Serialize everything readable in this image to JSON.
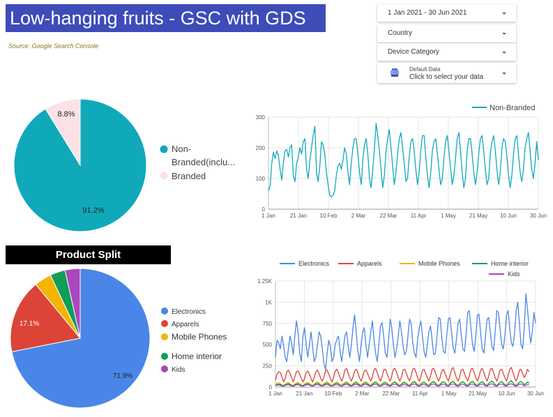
{
  "header": {
    "title": "Low-hanging fruits - GSC with GDS",
    "source": "Source: Google Search Console"
  },
  "controls": {
    "date_range": "1 Jan 2021 - 30 Jun 2021",
    "country": "Country",
    "device_category": "Device Category",
    "data_source_title": "Default Data",
    "data_source_subtitle": "Click to select your data"
  },
  "product_split_title": "Product Split",
  "colors": {
    "banner": "#3d4cb8",
    "non_branded": "#10a9ba",
    "branded": "#fbe2e6",
    "electronics": "#4a86e8",
    "apparels": "#db4437",
    "mobile_phones": "#f4b400",
    "home_interior": "#0f9d58",
    "kids": "#ab47bc"
  },
  "chart_data": [
    {
      "type": "pie",
      "labels": [
        "Non-Branded(inclu...",
        "Branded"
      ],
      "values": [
        91.2,
        8.8
      ],
      "data_labels": [
        "91.2%",
        "8.8%"
      ],
      "legend": "right"
    },
    {
      "type": "line",
      "series_names": [
        "Non-Branded"
      ],
      "x_ticks": [
        "1 Jan",
        "21 Jan",
        "10 Feb",
        "2 Mar",
        "22 Mar",
        "11 Apr",
        "1 May",
        "21 May",
        "10 Jun",
        "30 Jun"
      ],
      "y_ticks": [
        "0",
        "100",
        "200",
        "300"
      ],
      "ylim": [
        0,
        300
      ],
      "legend": "top-right",
      "grid": true,
      "series": [
        {
          "name": "Non-Branded",
          "values": [
            60,
            75,
            150,
            185,
            165,
            190,
            175,
            130,
            95,
            150,
            190,
            195,
            170,
            200,
            210,
            110,
            90,
            150,
            170,
            200,
            180,
            220,
            230,
            130,
            100,
            160,
            200,
            240,
            270,
            120,
            90,
            140,
            220,
            210,
            180,
            120,
            80,
            45,
            40,
            45,
            60,
            110,
            140,
            150,
            130,
            160,
            200,
            180,
            120,
            80,
            150,
            200,
            230,
            230,
            180,
            120,
            80,
            160,
            210,
            230,
            180,
            100,
            70,
            130,
            200,
            280,
            240,
            190,
            130,
            70,
            110,
            190,
            230,
            260,
            200,
            140,
            80,
            120,
            180,
            230,
            250,
            200,
            150,
            90,
            100,
            170,
            220,
            230,
            190,
            130,
            80,
            120,
            190,
            240,
            240,
            170,
            110,
            70,
            120,
            190,
            220,
            230,
            180,
            130,
            80,
            100,
            170,
            220,
            240,
            190,
            130,
            80,
            110,
            170,
            230,
            250,
            190,
            120,
            70,
            100,
            190,
            230,
            230,
            180,
            120,
            80,
            120,
            180,
            230,
            240,
            190,
            130,
            80,
            100,
            180,
            220,
            240,
            190,
            130,
            80,
            120,
            200,
            230,
            220,
            170,
            110,
            70,
            110,
            180,
            230,
            240,
            180,
            120,
            90,
            130,
            200,
            230,
            250,
            190,
            130,
            100,
            150,
            220,
            160
          ]
        }
      ]
    },
    {
      "type": "pie",
      "labels": [
        "Electronics",
        "Apparels",
        "Mobile Phones",
        "Home interior",
        "Kids"
      ],
      "values": [
        71.9,
        17.1,
        4.0,
        3.5,
        3.5
      ],
      "data_labels": [
        "71.9%",
        "17.1%",
        "",
        "",
        ""
      ],
      "legend": "right"
    },
    {
      "type": "line",
      "series_names": [
        "Electronics",
        "Apparels",
        "Mobile Phones",
        "Home interior",
        "Kids"
      ],
      "x_ticks": [
        "1 Jan",
        "21 Jan",
        "10 Feb",
        "2 Mar",
        "22 Mar",
        "11 Apr",
        "1 May",
        "21 May",
        "10 Jun",
        "30 Jun"
      ],
      "y_ticks": [
        "0",
        "250",
        "500",
        "750",
        "1K",
        "1.25K"
      ],
      "ylim": [
        0,
        1250
      ],
      "legend": "top",
      "grid": true,
      "series": [
        {
          "name": "Electronics",
          "values": [
            350,
            550,
            520,
            450,
            600,
            500,
            350,
            300,
            450,
            600,
            520,
            380,
            600,
            780,
            650,
            400,
            300,
            600,
            700,
            500,
            350,
            500,
            650,
            480,
            300,
            350,
            500,
            650,
            600,
            450,
            280,
            200,
            400,
            550,
            480,
            300,
            350,
            500,
            560,
            600,
            420,
            300,
            450,
            600,
            650,
            480,
            350,
            500,
            700,
            850,
            650,
            420,
            300,
            500,
            650,
            700,
            500,
            350,
            500,
            650,
            780,
            560,
            400,
            300,
            500,
            720,
            760,
            600,
            400,
            350,
            550,
            800,
            700,
            500,
            350,
            450,
            600,
            780,
            650,
            480,
            380,
            420,
            600,
            800,
            750,
            520,
            400,
            350,
            560,
            700,
            780,
            600,
            420,
            350,
            500,
            650,
            720,
            550,
            380,
            400,
            600,
            820,
            800,
            580,
            420,
            400,
            600,
            800,
            820,
            650,
            460,
            400,
            560,
            750,
            800,
            620,
            450,
            420,
            620,
            880,
            900,
            700,
            500,
            420,
            600,
            850,
            860,
            640,
            450,
            400,
            600,
            800,
            820,
            650,
            480,
            430,
            650,
            900,
            880,
            700,
            500,
            450,
            600,
            850,
            900,
            700,
            520,
            480,
            640,
            900,
            1000,
            750,
            500,
            450,
            700,
            1100,
            920,
            700,
            520,
            650,
            880,
            750
          ]
        },
        {
          "name": "Apparels",
          "values": [
            80,
            150,
            180,
            170,
            120,
            60,
            100,
            180,
            200,
            160,
            110,
            60,
            120,
            180,
            190,
            150,
            100,
            60,
            100,
            170,
            190,
            150,
            100,
            60,
            110,
            180,
            200,
            160,
            100,
            70,
            120,
            190,
            200,
            150,
            100,
            60,
            110,
            190,
            210,
            170,
            110,
            70,
            120,
            200,
            220,
            160,
            110,
            70,
            120,
            190,
            210,
            170,
            110,
            70,
            120,
            190,
            200,
            160,
            110,
            70,
            120,
            200,
            220,
            170,
            110,
            70,
            120,
            200,
            210,
            160,
            110,
            70,
            130,
            210,
            220,
            170,
            110,
            70,
            120,
            200,
            210,
            160,
            110,
            70,
            130,
            210,
            220,
            170,
            110,
            70,
            120,
            200,
            210,
            160,
            110,
            70,
            130,
            210,
            220,
            170,
            110,
            70,
            120,
            190,
            210,
            160,
            110,
            70,
            130,
            210,
            230,
            170,
            110,
            70,
            120,
            200,
            210,
            160,
            110,
            70,
            130,
            210,
            220,
            170,
            110,
            70,
            120,
            200,
            220,
            170,
            110,
            70,
            130,
            210,
            220,
            170,
            110,
            70,
            120,
            200,
            210,
            160,
            110,
            70,
            130,
            210,
            230,
            170,
            110,
            70,
            120,
            200,
            210,
            160,
            110,
            150,
            210,
            180
          ]
        },
        {
          "name": "Mobile Phones",
          "values": [
            30,
            45,
            50,
            40,
            25,
            20,
            35,
            50,
            55,
            40,
            25,
            20,
            35,
            50,
            55,
            40,
            25,
            20,
            35,
            45,
            55,
            45,
            30,
            20,
            35,
            50,
            60,
            45,
            30,
            20,
            40,
            55,
            60,
            45,
            30,
            20,
            35,
            50,
            60,
            45,
            30,
            20,
            40,
            55,
            60,
            45,
            30,
            20,
            40,
            55,
            65,
            50,
            30,
            20,
            40,
            55,
            60,
            45,
            30,
            20,
            40,
            55,
            65,
            50,
            30,
            20,
            40,
            55,
            60,
            45,
            30,
            20,
            40,
            55,
            65,
            50,
            30,
            20,
            40,
            55,
            60,
            45,
            30,
            20,
            40,
            60,
            70,
            50,
            30,
            20,
            40,
            55,
            60,
            45,
            30,
            20,
            45,
            60,
            70,
            50,
            30,
            20,
            40,
            55,
            65,
            50,
            30,
            20,
            45,
            60,
            70,
            50,
            30,
            20,
            40,
            55,
            65,
            50,
            30,
            20,
            45,
            60,
            70,
            50,
            30,
            20,
            40,
            55,
            65,
            50,
            30,
            20,
            45,
            60,
            70,
            55,
            30,
            20,
            40,
            55,
            65,
            50,
            30,
            20,
            45,
            60,
            70,
            50,
            30,
            20,
            40,
            55,
            65,
            50,
            30,
            40,
            55,
            45
          ]
        },
        {
          "name": "Home interior",
          "values": [
            20,
            30,
            35,
            30,
            20,
            15,
            25,
            35,
            40,
            30,
            20,
            15,
            25,
            35,
            40,
            30,
            20,
            15,
            25,
            35,
            40,
            30,
            20,
            15,
            25,
            40,
            45,
            35,
            20,
            15,
            30,
            40,
            45,
            35,
            20,
            15,
            25,
            40,
            45,
            35,
            20,
            15,
            30,
            40,
            50,
            35,
            25,
            15,
            30,
            45,
            50,
            35,
            25,
            15,
            30,
            45,
            50,
            35,
            25,
            15,
            30,
            45,
            55,
            40,
            25,
            15,
            30,
            45,
            50,
            35,
            25,
            15,
            35,
            50,
            55,
            40,
            25,
            15,
            30,
            45,
            55,
            40,
            25,
            15,
            35,
            50,
            60,
            40,
            25,
            15,
            30,
            45,
            55,
            40,
            25,
            15,
            35,
            55,
            60,
            45,
            25,
            15,
            30,
            50,
            60,
            45,
            25,
            15,
            35,
            55,
            65,
            45,
            25,
            15,
            35,
            50,
            60,
            45,
            25,
            15,
            35,
            55,
            65,
            45,
            25,
            15,
            35,
            50,
            60,
            45,
            25,
            15,
            40,
            60,
            70,
            50,
            25,
            15,
            35,
            55,
            65,
            45,
            25,
            15,
            40,
            60,
            75,
            50,
            25,
            15,
            35,
            55,
            65,
            50,
            25,
            40,
            60,
            45
          ]
        },
        {
          "name": "Kids",
          "values": [
            15,
            22,
            25,
            20,
            12,
            10,
            18,
            25,
            28,
            20,
            12,
            10,
            18,
            25,
            28,
            20,
            12,
            10,
            18,
            25,
            28,
            22,
            14,
            10,
            18,
            26,
            30,
            22,
            14,
            10,
            20,
            28,
            30,
            22,
            14,
            10,
            18,
            26,
            30,
            22,
            14,
            10,
            20,
            28,
            32,
            24,
            14,
            10,
            20,
            28,
            32,
            24,
            14,
            10,
            20,
            28,
            32,
            24,
            14,
            10,
            20,
            30,
            34,
            24,
            14,
            10,
            20,
            28,
            32,
            24,
            14,
            10,
            22,
            30,
            34,
            26,
            14,
            10,
            20,
            28,
            32,
            24,
            14,
            10,
            22,
            30,
            35,
            26,
            14,
            10,
            20,
            28,
            32,
            24,
            14,
            10,
            22,
            32,
            36,
            26,
            14,
            10,
            20,
            30,
            34,
            26,
            14,
            10,
            22,
            32,
            36,
            26,
            14,
            10,
            20,
            30,
            34,
            26,
            14,
            10,
            22,
            32,
            36,
            26,
            14,
            10,
            22,
            30,
            35,
            26,
            14,
            10,
            24,
            34,
            38,
            28,
            14,
            10,
            22,
            32,
            36,
            26,
            14,
            10,
            24,
            34,
            38,
            28,
            14,
            10,
            22,
            32,
            36,
            26,
            14,
            20,
            30,
            24
          ]
        }
      ]
    }
  ]
}
